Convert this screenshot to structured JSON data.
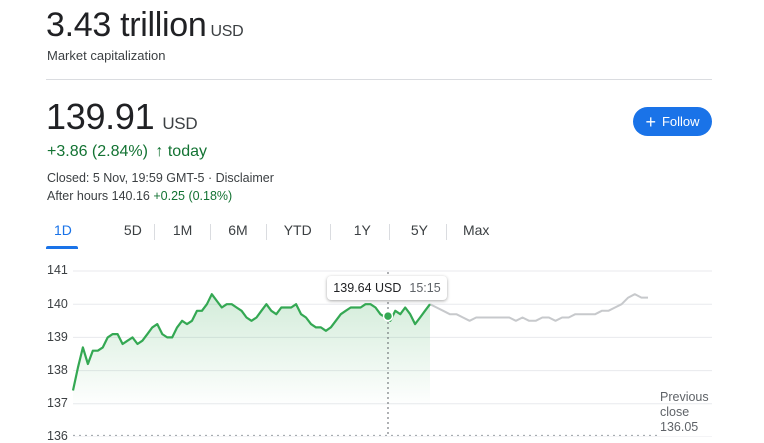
{
  "market_cap": {
    "value": "3.43 trillion",
    "currency": "USD",
    "label": "Market capitalization"
  },
  "price": {
    "value": "139.91",
    "currency": "USD"
  },
  "change": {
    "text": "+3.86 (2.84%)",
    "arrow": "↑",
    "period": "today"
  },
  "status": {
    "closed": "Closed: 5 Nov, 19:59 GMT-5 · Disclaimer"
  },
  "after_hours": {
    "label": "After hours 140.16",
    "change": "+0.25 (0.18%)"
  },
  "follow": {
    "label": "Follow",
    "icon": "plus-icon"
  },
  "tabs": [
    {
      "label": "1D",
      "active": true
    },
    {
      "label": "5D"
    },
    {
      "label": "1M"
    },
    {
      "label": "6M"
    },
    {
      "label": "YTD"
    },
    {
      "label": "1Y"
    },
    {
      "label": "5Y"
    },
    {
      "label": "Max"
    }
  ],
  "tooltip": {
    "price": "139.64 USD",
    "time": "15:15"
  },
  "previous_close": {
    "label_line1": "Previous",
    "label_line2": "close",
    "value": "136.05"
  },
  "colors": {
    "green": "#137333",
    "line_green": "#34a853",
    "gray_line": "#c7c9cc",
    "accent": "#1a73e8"
  },
  "chart_data": {
    "type": "line",
    "yticks": [
      "141",
      "140",
      "139",
      "138",
      "137",
      "136"
    ],
    "ylim": [
      136,
      141
    ],
    "previous_close": 136.05,
    "hover": {
      "time": "15:15",
      "price": 139.64
    },
    "series": [
      {
        "values": [
          137.4,
          138.1,
          138.7,
          138.2,
          138.6,
          138.6,
          138.7,
          139.0,
          139.1,
          139.1,
          138.8,
          138.9,
          139.0,
          138.8,
          138.9,
          139.1,
          139.3,
          139.4,
          139.1,
          139.0,
          139.0,
          139.3,
          139.5,
          139.4,
          139.5,
          139.8,
          139.8,
          140.0,
          140.3,
          140.1,
          139.9,
          140.0,
          140.0,
          139.9,
          139.8,
          139.6,
          139.5,
          139.6,
          139.8,
          140.0,
          139.8,
          139.7,
          139.9,
          139.9,
          139.9,
          140.0,
          139.7,
          139.6,
          139.4,
          139.3,
          139.3,
          139.2,
          139.3,
          139.5,
          139.7,
          139.8,
          139.9,
          139.9,
          139.9,
          140.0,
          140.0,
          139.9,
          139.7,
          139.6,
          139.5,
          139.8,
          139.7,
          139.9,
          139.7,
          139.4,
          139.6,
          139.8,
          140.0
        ]
      },
      {
        "values": [
          140.0,
          139.9,
          139.8,
          139.7,
          139.7,
          139.6,
          139.5,
          139.6,
          139.6,
          139.6,
          139.6,
          139.6,
          139.6,
          139.5,
          139.6,
          139.5,
          139.5,
          139.6,
          139.6,
          139.5,
          139.6,
          139.6,
          139.7,
          139.7,
          139.7,
          139.7,
          139.8,
          139.8,
          139.9,
          140.0,
          140.2,
          140.3,
          140.2,
          140.2
        ]
      }
    ]
  }
}
